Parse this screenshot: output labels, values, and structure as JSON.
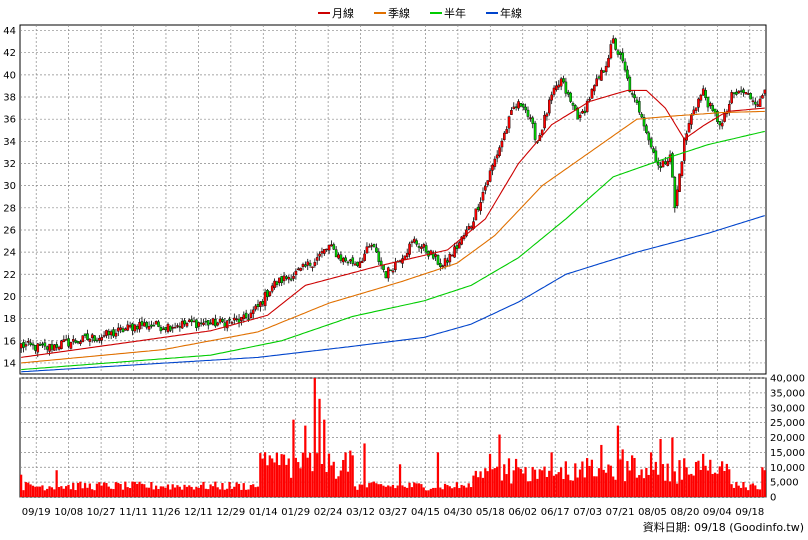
{
  "chart_data": [
    {
      "type": "candlestick",
      "ylim": [
        13,
        44.5
      ],
      "y_ticks": [
        "14",
        "16",
        "18",
        "20",
        "22",
        "24",
        "26",
        "28",
        "30",
        "32",
        "34",
        "36",
        "38",
        "40",
        "42",
        "44"
      ],
      "grid": true,
      "legend_position": "top-center",
      "legend": [
        {
          "label": "月線",
          "color": "#cc0000"
        },
        {
          "label": "季線",
          "color": "#e07000"
        },
        {
          "label": "半年",
          "color": "#00cc00"
        },
        {
          "label": "年線",
          "color": "#0044cc"
        }
      ],
      "x_tick_labels": [
        "09/19",
        "10/08",
        "10/27",
        "11/11",
        "11/26",
        "12/11",
        "12/29",
        "01/14",
        "01/29",
        "02/24",
        "03/12",
        "03/27",
        "04/15",
        "04/30",
        "05/18",
        "06/02",
        "06/17",
        "07/03",
        "07/21",
        "08/05",
        "08/20",
        "09/04",
        "09/18"
      ],
      "close_anchors": [
        [
          0,
          15.6
        ],
        [
          10,
          15.3
        ],
        [
          16,
          15.7
        ],
        [
          24,
          16.0
        ],
        [
          38,
          16.6
        ],
        [
          50,
          17.5
        ],
        [
          60,
          17.3
        ],
        [
          72,
          17.6
        ],
        [
          84,
          17.6
        ],
        [
          94,
          17.9
        ],
        [
          100,
          19.0
        ],
        [
          106,
          21.0
        ],
        [
          112,
          21.7
        ],
        [
          118,
          22.3
        ],
        [
          124,
          23.3
        ],
        [
          130,
          24.5
        ],
        [
          136,
          23.3
        ],
        [
          142,
          23.0
        ],
        [
          148,
          24.6
        ],
        [
          154,
          22.0
        ],
        [
          160,
          23.5
        ],
        [
          166,
          25.0
        ],
        [
          172,
          24.0
        ],
        [
          178,
          22.7
        ],
        [
          184,
          24.5
        ],
        [
          190,
          26.5
        ],
        [
          196,
          30.0
        ],
        [
          202,
          33.5
        ],
        [
          208,
          37.0
        ],
        [
          212,
          37.5
        ],
        [
          218,
          34.0
        ],
        [
          224,
          38.0
        ],
        [
          228,
          39.5
        ],
        [
          232,
          37.5
        ],
        [
          236,
          36.0
        ],
        [
          240,
          38.0
        ],
        [
          246,
          40.5
        ],
        [
          250,
          43.0
        ],
        [
          254,
          41.0
        ],
        [
          258,
          38.0
        ],
        [
          262,
          36.5
        ],
        [
          266,
          33.5
        ],
        [
          270,
          31.5
        ],
        [
          274,
          33.0
        ],
        [
          276,
          28.0
        ],
        [
          280,
          34.0
        ],
        [
          284,
          37.0
        ],
        [
          288,
          38.5
        ],
        [
          292,
          36.5
        ],
        [
          296,
          35.5
        ],
        [
          300,
          38.0
        ],
        [
          304,
          38.5
        ],
        [
          308,
          38.0
        ],
        [
          312,
          37.5
        ],
        [
          314,
          38.8
        ]
      ],
      "ma_anchors": {
        "month": [
          [
            0,
            14.5
          ],
          [
            40,
            15.7
          ],
          [
            80,
            16.9
          ],
          [
            104,
            18.3
          ],
          [
            120,
            21.0
          ],
          [
            150,
            22.7
          ],
          [
            180,
            24.2
          ],
          [
            196,
            27.0
          ],
          [
            210,
            32.0
          ],
          [
            224,
            35.5
          ],
          [
            240,
            37.6
          ],
          [
            256,
            38.6
          ],
          [
            264,
            38.6
          ],
          [
            272,
            37.0
          ],
          [
            280,
            34.2
          ],
          [
            288,
            35.4
          ],
          [
            298,
            36.7
          ],
          [
            314,
            37.0
          ]
        ],
        "season": [
          [
            0,
            14.0
          ],
          [
            60,
            15.2
          ],
          [
            100,
            16.8
          ],
          [
            130,
            19.4
          ],
          [
            160,
            21.3
          ],
          [
            184,
            23.0
          ],
          [
            200,
            25.5
          ],
          [
            220,
            30.0
          ],
          [
            240,
            33.0
          ],
          [
            260,
            36.0
          ],
          [
            276,
            36.3
          ],
          [
            296,
            36.6
          ],
          [
            314,
            36.7
          ]
        ],
        "half": [
          [
            0,
            13.4
          ],
          [
            80,
            14.7
          ],
          [
            110,
            16.0
          ],
          [
            140,
            18.2
          ],
          [
            170,
            19.6
          ],
          [
            190,
            21.0
          ],
          [
            210,
            23.5
          ],
          [
            230,
            27.0
          ],
          [
            250,
            30.8
          ],
          [
            270,
            32.3
          ],
          [
            290,
            33.7
          ],
          [
            314,
            34.9
          ]
        ],
        "year": [
          [
            0,
            13.2
          ],
          [
            100,
            14.5
          ],
          [
            140,
            15.5
          ],
          [
            170,
            16.3
          ],
          [
            190,
            17.5
          ],
          [
            210,
            19.5
          ],
          [
            230,
            22.0
          ],
          [
            260,
            24.0
          ],
          [
            290,
            25.7
          ],
          [
            314,
            27.3
          ]
        ]
      },
      "volume": {
        "ylim": [
          0,
          40000
        ],
        "y_ticks": [
          "0",
          "5,000",
          "10,000",
          "15,000",
          "20,000",
          "25,000",
          "30,000",
          "35,000",
          "40,000"
        ],
        "color": "#ff0000",
        "spikes": [
          [
            0,
            7500
          ],
          [
            15,
            9000
          ],
          [
            105,
            14000
          ],
          [
            115,
            26000
          ],
          [
            120,
            24000
          ],
          [
            124,
            40000
          ],
          [
            126,
            33000
          ],
          [
            128,
            26000
          ],
          [
            140,
            14000
          ],
          [
            145,
            18000
          ],
          [
            160,
            11000
          ],
          [
            176,
            15000
          ],
          [
            198,
            14500
          ],
          [
            202,
            21000
          ],
          [
            206,
            13000
          ],
          [
            210,
            10000
          ],
          [
            224,
            15000
          ],
          [
            230,
            12000
          ],
          [
            245,
            17500
          ],
          [
            252,
            24000
          ],
          [
            254,
            16000
          ],
          [
            258,
            14000
          ],
          [
            266,
            15000
          ],
          [
            270,
            19500
          ],
          [
            275,
            20000
          ],
          [
            280,
            13000
          ],
          [
            288,
            14500
          ],
          [
            296,
            12000
          ],
          [
            313,
            10000
          ],
          [
            314,
            9000
          ]
        ]
      }
    }
  ],
  "footer": {
    "text": "資料日期: 09/18  (Goodinfo.tw)"
  }
}
